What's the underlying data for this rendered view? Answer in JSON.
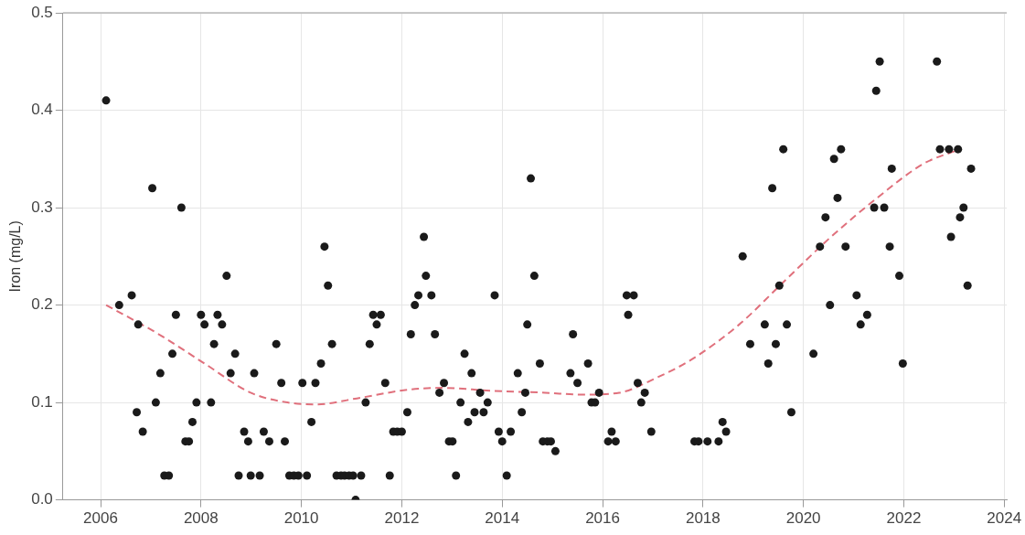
{
  "chart_data": {
    "type": "scatter",
    "ylabel": "Iron (mg/L)",
    "xlim": [
      2005.25,
      2024.05
    ],
    "ylim": [
      0,
      0.5
    ],
    "xticks": [
      2006,
      2008,
      2010,
      2012,
      2014,
      2016,
      2018,
      2020,
      2022,
      2024
    ],
    "yticks": [
      {
        "value": 0,
        "label": "0.0"
      },
      {
        "value": 0.1,
        "label": "0.1"
      },
      {
        "value": 0.2,
        "label": "0.2"
      },
      {
        "value": 0.3,
        "label": "0.3"
      },
      {
        "value": 0.4,
        "label": "0.4"
      },
      {
        "value": 0.5,
        "label": "0.5"
      }
    ],
    "grid": true,
    "legend": false,
    "marker": "circle",
    "series": [
      {
        "type": "scatter",
        "color": "#1a1a1a",
        "x": [
          2006.11,
          2006.37,
          2006.62,
          2006.72,
          2006.75,
          2006.84,
          2007.03,
          2007.1,
          2007.19,
          2007.27,
          2007.36,
          2007.43,
          2007.5,
          2007.61,
          2007.69,
          2007.76,
          2007.83,
          2007.91,
          2008.0,
          2008.07,
          2008.2,
          2008.26,
          2008.33,
          2008.42,
          2008.51,
          2008.59,
          2008.68,
          2008.75,
          2008.86,
          2008.94,
          2008.99,
          2009.06,
          2009.17,
          2009.25,
          2009.36,
          2009.5,
          2009.6,
          2009.67,
          2009.76,
          2009.85,
          2009.94,
          2010.02,
          2010.11,
          2010.2,
          2010.28,
          2010.39,
          2010.46,
          2010.53,
          2010.61,
          2010.7,
          2010.79,
          2010.86,
          2010.95,
          2011.03,
          2011.08,
          2011.19,
          2011.28,
          2011.36,
          2011.43,
          2011.5,
          2011.58,
          2011.67,
          2011.76,
          2011.83,
          2011.91,
          2012.0,
          2012.11,
          2012.18,
          2012.26,
          2012.33,
          2012.44,
          2012.48,
          2012.59,
          2012.66,
          2012.75,
          2012.84,
          2012.94,
          2013.01,
          2013.08,
          2013.17,
          2013.25,
          2013.32,
          2013.39,
          2013.45,
          2013.56,
          2013.63,
          2013.71,
          2013.85,
          2013.93,
          2014.0,
          2014.09,
          2014.17,
          2014.31,
          2014.39,
          2014.46,
          2014.5,
          2014.57,
          2014.64,
          2014.75,
          2014.81,
          2014.9,
          2014.97,
          2015.06,
          2015.36,
          2015.41,
          2015.5,
          2015.71,
          2015.78,
          2015.85,
          2015.93,
          2016.11,
          2016.18,
          2016.26,
          2016.48,
          2016.51,
          2016.62,
          2016.7,
          2016.77,
          2016.84,
          2016.97,
          2017.83,
          2017.91,
          2018.09,
          2018.31,
          2018.39,
          2018.46,
          2018.79,
          2018.94,
          2019.23,
          2019.3,
          2019.38,
          2019.45,
          2019.52,
          2019.6,
          2019.67,
          2019.76,
          2020.2,
          2020.33,
          2020.44,
          2020.53,
          2020.61,
          2020.68,
          2020.75,
          2020.84,
          2021.06,
          2021.14,
          2021.27,
          2021.41,
          2021.45,
          2021.52,
          2021.61,
          2021.72,
          2021.76,
          2021.91,
          2021.98,
          2022.66,
          2022.72,
          2022.9,
          2022.94,
          2023.08,
          2023.12,
          2023.19,
          2023.27,
          2023.34
        ],
        "values": [
          0.41,
          0.2,
          0.21,
          0.09,
          0.18,
          0.07,
          0.32,
          0.1,
          0.13,
          0.025,
          0.025,
          0.15,
          0.19,
          0.3,
          0.06,
          0.06,
          0.08,
          0.1,
          0.19,
          0.18,
          0.1,
          0.16,
          0.19,
          0.18,
          0.23,
          0.13,
          0.15,
          0.025,
          0.07,
          0.06,
          0.025,
          0.13,
          0.025,
          0.07,
          0.06,
          0.16,
          0.12,
          0.06,
          0.025,
          0.025,
          0.025,
          0.12,
          0.025,
          0.08,
          0.12,
          0.14,
          0.26,
          0.22,
          0.16,
          0.025,
          0.025,
          0.025,
          0.025,
          0.025,
          0,
          0.025,
          0.1,
          0.16,
          0.19,
          0.18,
          0.19,
          0.12,
          0.025,
          0.07,
          0.07,
          0.07,
          0.09,
          0.17,
          0.2,
          0.21,
          0.27,
          0.23,
          0.21,
          0.17,
          0.11,
          0.12,
          0.06,
          0.06,
          0.025,
          0.1,
          0.15,
          0.08,
          0.13,
          0.09,
          0.11,
          0.09,
          0.1,
          0.21,
          0.07,
          0.06,
          0.025,
          0.07,
          0.13,
          0.09,
          0.11,
          0.18,
          0.33,
          0.23,
          0.14,
          0.06,
          0.06,
          0.06,
          0.05,
          0.13,
          0.17,
          0.12,
          0.14,
          0.1,
          0.1,
          0.11,
          0.06,
          0.07,
          0.06,
          0.21,
          0.19,
          0.21,
          0.12,
          0.1,
          0.11,
          0.07,
          0.06,
          0.06,
          0.06,
          0.06,
          0.08,
          0.07,
          0.25,
          0.16,
          0.18,
          0.14,
          0.32,
          0.16,
          0.22,
          0.36,
          0.18,
          0.09,
          0.15,
          0.26,
          0.29,
          0.2,
          0.35,
          0.31,
          0.36,
          0.26,
          0.21,
          0.18,
          0.19,
          0.3,
          0.42,
          0.45,
          0.3,
          0.26,
          0.34,
          0.23,
          0.14,
          0.45,
          0.36,
          0.36,
          0.27,
          0.36,
          0.29,
          0.3,
          0.22,
          0.34
        ]
      },
      {
        "type": "line",
        "color": "#e0707c",
        "line_style": "dashed",
        "marker": "none",
        "x": [
          2006.11,
          2007.16,
          2008.07,
          2008.99,
          2009.72,
          2010.28,
          2011.19,
          2012.11,
          2012.84,
          2013.76,
          2014.86,
          2015.6,
          2016.33,
          2017.06,
          2017.8,
          2018.72,
          2019.63,
          2020.55,
          2021.47,
          2022.39,
          2023.12
        ],
        "values": [
          0.2,
          0.17,
          0.14,
          0.11,
          0.1,
          0.098,
          0.105,
          0.113,
          0.115,
          0.112,
          0.11,
          0.108,
          0.11,
          0.125,
          0.145,
          0.18,
          0.225,
          0.27,
          0.31,
          0.345,
          0.36
        ]
      }
    ]
  }
}
